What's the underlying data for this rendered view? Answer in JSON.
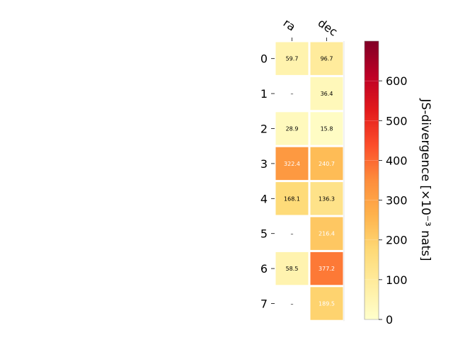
{
  "chart_data": {
    "type": "heatmap",
    "columns": [
      "ra",
      "dec"
    ],
    "rows": [
      "0",
      "1",
      "2",
      "3",
      "4",
      "5",
      "6",
      "7"
    ],
    "values": [
      [
        59.7,
        96.7
      ],
      [
        null,
        36.4
      ],
      [
        28.9,
        15.8
      ],
      [
        322.4,
        240.7
      ],
      [
        168.1,
        136.3
      ],
      [
        null,
        216.4
      ],
      [
        58.5,
        377.2
      ],
      [
        null,
        189.5
      ]
    ],
    "cell_labels": [
      [
        "59.7",
        "96.7"
      ],
      [
        "–",
        "36.4"
      ],
      [
        "28.9",
        "15.8"
      ],
      [
        "322.4",
        "240.7"
      ],
      [
        "168.1",
        "136.3"
      ],
      [
        "–",
        "216.4"
      ],
      [
        "58.5",
        "377.2"
      ],
      [
        "–",
        "189.5"
      ]
    ],
    "colorbar": {
      "label": "JS-divergence [×10⁻³ nats]",
      "range": [
        0,
        700
      ],
      "ticks": [
        "0",
        "100",
        "200",
        "300",
        "400",
        "500",
        "600"
      ],
      "colormap": "YlOrRd"
    },
    "grid": false,
    "legend": "none"
  }
}
